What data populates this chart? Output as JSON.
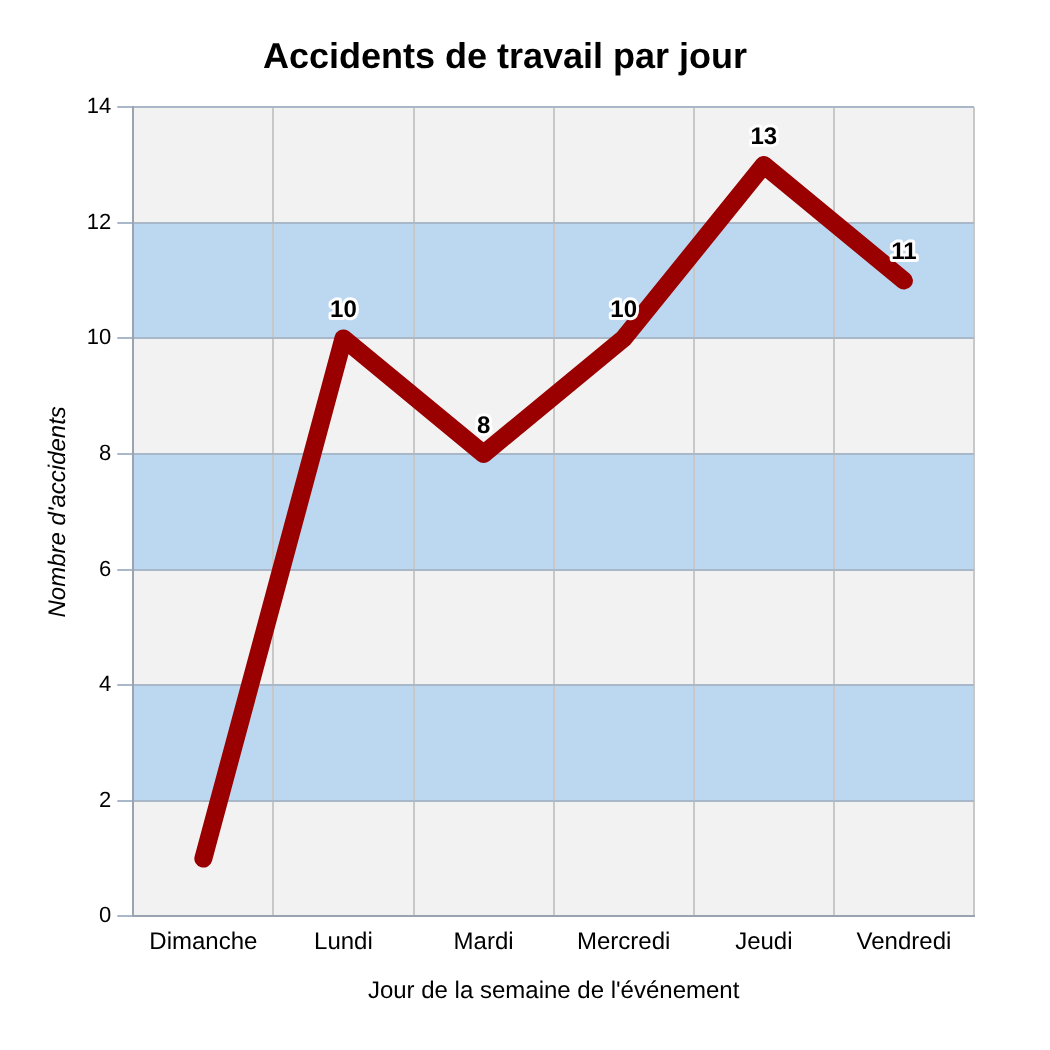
{
  "chart_data": {
    "type": "line",
    "title": "Accidents de travail par jour",
    "xlabel": "Jour de la semaine de l'événement",
    "ylabel": "Nombre d'accidents",
    "categories": [
      "Dimanche",
      "Lundi",
      "Mardi",
      "Mercredi",
      "Jeudi",
      "Vendredi"
    ],
    "values": [
      1,
      10,
      8,
      10,
      13,
      11
    ],
    "color": "#9b0000",
    "value_labels": [
      null,
      "10",
      "8",
      "10",
      "13",
      "11"
    ],
    "ylim": [
      0,
      14
    ],
    "yticks": [
      0,
      2,
      4,
      6,
      8,
      10,
      12,
      14
    ],
    "grid": true,
    "marker": "none",
    "bands": [
      {
        "axis": "y",
        "from": 2,
        "to": 4,
        "color": "#bcd7f0"
      },
      {
        "axis": "y",
        "from": 6,
        "to": 8,
        "color": "#bcd7f0"
      },
      {
        "axis": "y",
        "from": 10,
        "to": 12,
        "color": "#bcd7f0"
      }
    ]
  }
}
